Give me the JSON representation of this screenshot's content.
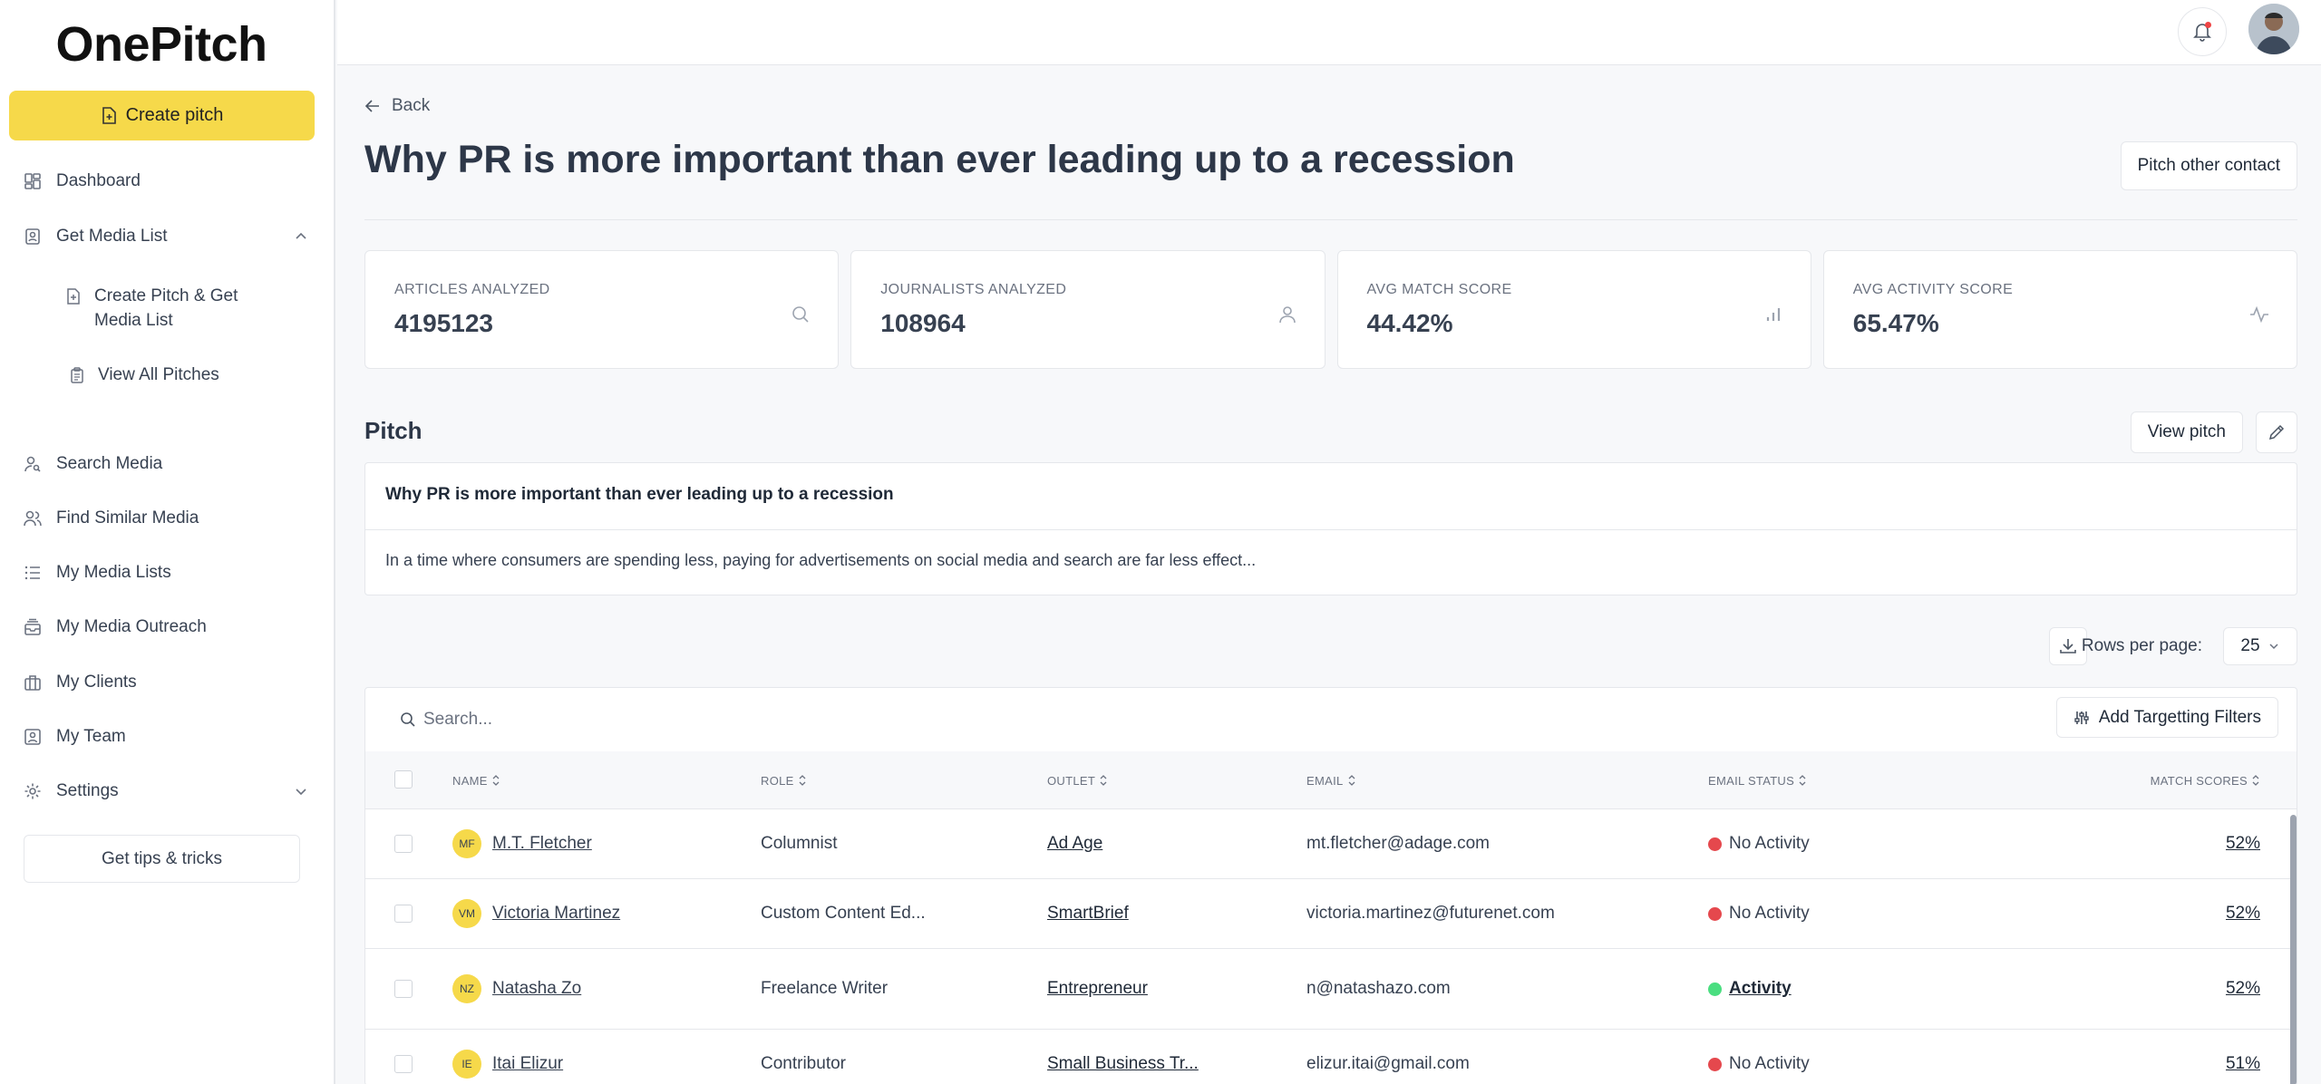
{
  "app": {
    "logo": "OnePitch"
  },
  "sidebar": {
    "create_label": "Create pitch",
    "dashboard": "Dashboard",
    "get_media_list": "Get Media List",
    "sub_create": "Create Pitch & Get Media List",
    "sub_view": "View All Pitches",
    "search_media": "Search Media",
    "find_similar": "Find Similar Media",
    "my_lists": "My Media Lists",
    "my_outreach": "My Media Outreach",
    "my_clients": "My Clients",
    "my_team": "My Team",
    "settings": "Settings",
    "tips": "Get tips & tricks"
  },
  "header": {
    "back": "Back",
    "title": "Why PR is more important than ever leading up to a recession",
    "pitch_other": "Pitch other contact"
  },
  "stats": [
    {
      "label": "ARTICLES ANALYZED",
      "value": "4195123",
      "icon": "search-icon"
    },
    {
      "label": "JOURNALISTS ANALYZED",
      "value": "108964",
      "icon": "user-icon"
    },
    {
      "label": "AVG MATCH SCORE",
      "value": "44.42%",
      "icon": "bar-chart-icon"
    },
    {
      "label": "AVG ACTIVITY SCORE",
      "value": "65.47%",
      "icon": "activity-icon"
    }
  ],
  "pitch": {
    "heading": "Pitch",
    "view_label": "View pitch",
    "title": "Why PR is more important than ever leading up to a recession",
    "body": "In a time where consumers are spending less, paying for advertisements on social media and search are far less effect..."
  },
  "table": {
    "rows_per_page_label": "Rows per page:",
    "rows_per_page": "25",
    "search_placeholder": "Search...",
    "filters_label": "Add Targetting Filters",
    "columns": [
      "NAME",
      "ROLE",
      "OUTLET",
      "EMAIL",
      "EMAIL STATUS",
      "MATCH SCORES"
    ],
    "rows": [
      {
        "initials": "MF",
        "name": "M.T. Fletcher",
        "role": "Columnist",
        "outlet": "Ad Age",
        "email": "mt.fletcher@adage.com",
        "status": "No Activity",
        "score": "52%"
      },
      {
        "initials": "VM",
        "name": "Victoria Martinez",
        "role": "Custom Content Ed...",
        "outlet": "SmartBrief",
        "email": "victoria.martinez@futurenet.com",
        "status": "No Activity",
        "score": "52%"
      },
      {
        "initials": "NZ",
        "name": "Natasha Zo",
        "role": "Freelance Writer",
        "outlet": "Entrepreneur",
        "email": "n@natashazo.com",
        "status": "Activity",
        "score": "52%"
      },
      {
        "initials": "IE",
        "name": "Itai Elizur",
        "role": "Contributor",
        "outlet": "Small Business Tr...",
        "email": "elizur.itai@gmail.com",
        "status": "No Activity",
        "score": "51%"
      }
    ]
  },
  "colors": {
    "accent": "#f6d94a",
    "no_activity": "#e5484d",
    "activity": "#4ade80"
  }
}
